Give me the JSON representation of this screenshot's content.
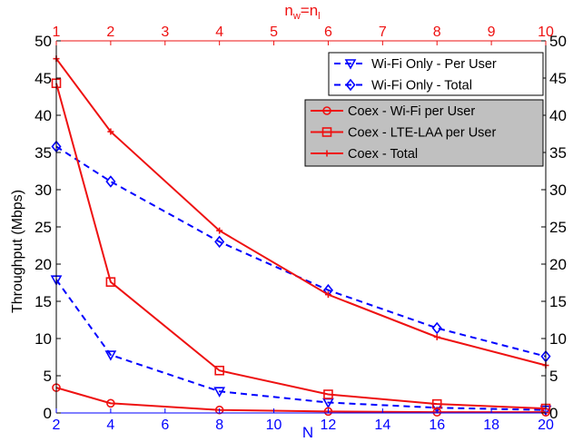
{
  "chart_data": {
    "type": "line",
    "xlabel": "N",
    "ylabel": "Throughput (Mbps)",
    "top_xlabel_base": "n",
    "top_xlabel_sub1": "w",
    "top_xlabel_eq": "=n",
    "top_xlabel_sub2": "l",
    "x": [
      2,
      4,
      8,
      12,
      16,
      20
    ],
    "xlim": [
      2,
      20
    ],
    "ylim": [
      0,
      50
    ],
    "xticks": [
      2,
      4,
      6,
      8,
      10,
      12,
      14,
      16,
      18,
      20
    ],
    "yticks": [
      0,
      5,
      10,
      15,
      20,
      25,
      30,
      35,
      40,
      45,
      50
    ],
    "top_xlim": [
      1,
      10
    ],
    "top_xticks": [
      1,
      2,
      3,
      4,
      5,
      6,
      7,
      8,
      9,
      10
    ],
    "right_yticks": [
      0,
      5,
      10,
      15,
      20,
      25,
      30,
      35,
      40,
      45,
      50
    ],
    "grid": false,
    "colors": {
      "blue": "#0000ff",
      "red": "#ee1111",
      "legend_red_bg": "#c0c0c0"
    },
    "series": [
      {
        "name": "Wi-Fi Only - Per User",
        "color": "#0000ff",
        "dash": true,
        "marker": "triangle-down",
        "values": [
          17.9,
          7.8,
          2.9,
          1.4,
          0.7,
          0.4
        ]
      },
      {
        "name": "Wi-Fi Only - Total",
        "color": "#0000ff",
        "dash": true,
        "marker": "diamond",
        "values": [
          35.8,
          31.1,
          23.0,
          16.5,
          11.4,
          7.6
        ]
      },
      {
        "name": "Coex - Wi-Fi per User",
        "color": "#ee1111",
        "dash": false,
        "marker": "circle",
        "values": [
          3.4,
          1.3,
          0.4,
          0.2,
          0.1,
          0.1
        ]
      },
      {
        "name": "Coex - LTE-LAA per User",
        "color": "#ee1111",
        "dash": false,
        "marker": "square",
        "values": [
          44.3,
          17.6,
          5.7,
          2.5,
          1.2,
          0.6
        ]
      },
      {
        "name": "Coex - Total",
        "color": "#ee1111",
        "dash": false,
        "marker": "plus",
        "values": [
          47.6,
          37.8,
          24.5,
          15.9,
          10.2,
          6.4
        ]
      }
    ],
    "legends": [
      {
        "placement": "top-right",
        "series_index": [
          0,
          1
        ],
        "background": "#ffffff"
      },
      {
        "placement": "upper-right",
        "series_index": [
          2,
          3,
          4
        ],
        "background": "#c0c0c0"
      }
    ]
  }
}
